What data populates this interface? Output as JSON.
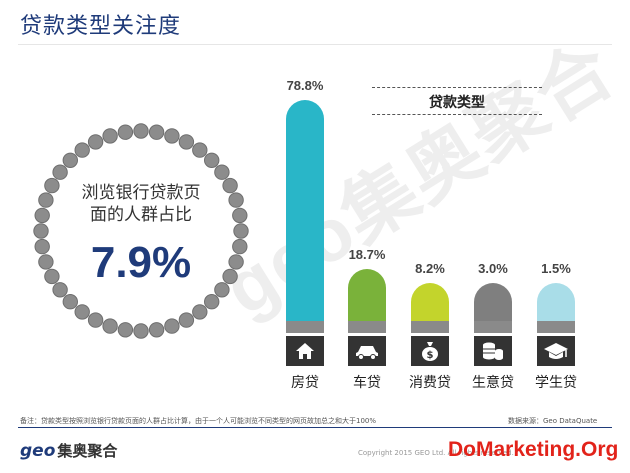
{
  "page": {
    "title": "贷款类型关注度",
    "watermark": "geo集奥聚合"
  },
  "highlight": {
    "label_line1": "浏览银行贷款页",
    "label_line2": "面的人群占比",
    "value": "7.9%"
  },
  "chart_data": {
    "type": "bar",
    "title": "贷款类型",
    "categories": [
      "房贷",
      "车贷",
      "消费贷",
      "生意贷",
      "学生贷"
    ],
    "values": [
      78.8,
      18.7,
      8.2,
      3.0,
      1.5
    ],
    "value_labels": [
      "78.8%",
      "18.7%",
      "8.2%",
      "3.0%",
      "1.5%"
    ],
    "icons": [
      "house-icon",
      "car-icon",
      "money-bag-icon",
      "coin-stack-icon",
      "graduation-cap-icon"
    ],
    "colors": [
      "#29b6c8",
      "#7ab23a",
      "#c3d42c",
      "#7f7f7f",
      "#a9dde8"
    ],
    "ylim": [
      0,
      78.8
    ],
    "xlabel": "",
    "ylabel": ""
  },
  "footer": {
    "note": "备注：贷款类型按照浏览银行贷款页面的人群占比计算，由于一个人可能浏览不同类型的网页故加总之和大于100%",
    "source": "数据来源：Geo DataQuate",
    "logo_en": "geo",
    "logo_cn": "集奥聚合",
    "copyright": "Copyright 2015 GEO Ltd. All rights reserved.",
    "site_mark": "DoMarketing.Org"
  }
}
